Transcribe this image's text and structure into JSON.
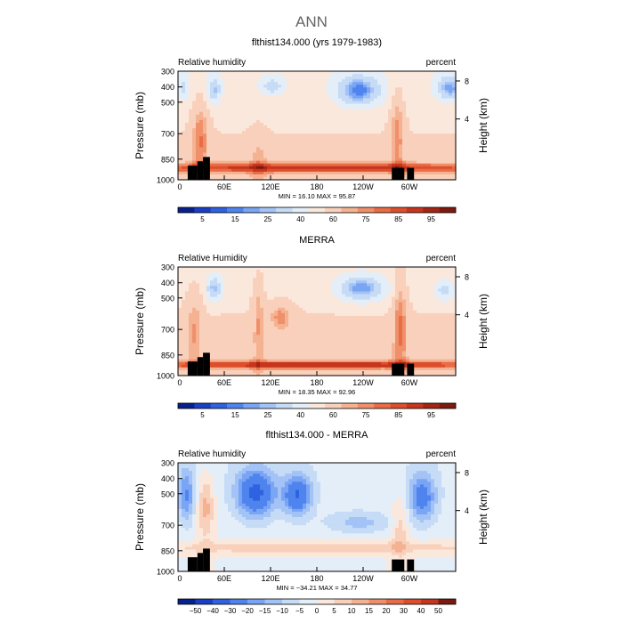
{
  "figure": {
    "title": "ANN"
  },
  "chart_data": [
    {
      "type": "heatmap",
      "title": "flthist134.000 (yrs 1979-1983)",
      "left_label": "Relative humidity",
      "right_label": "percent",
      "ylabel": "Pressure (mb)",
      "ylabel_right": "Height (km)",
      "x_ticks": [
        "0",
        "60E",
        "120E",
        "180",
        "120W",
        "60W"
      ],
      "y_ticks": [
        "300",
        "400",
        "500",
        "700",
        "850",
        "1000"
      ],
      "y_ticks_right": [
        "8",
        "4"
      ],
      "stats_text": "MIN =   16.10   MAX =   95.87",
      "min": 16.1,
      "max": 95.87,
      "colorbar_labels": [
        "5",
        "15",
        "25",
        "40",
        "60",
        "75",
        "85",
        "95"
      ],
      "colors": [
        "#08208c",
        "#1b3fc4",
        "#2f62e0",
        "#4f84ee",
        "#7aa4f4",
        "#a3c3f6",
        "#c6dbf5",
        "#e4eef8",
        "#fbe8dc",
        "#f9d0bb",
        "#f5b293",
        "#f0906a",
        "#e86c46",
        "#dc4f2c",
        "#c6361d",
        "#a22515",
        "#7d190f"
      ],
      "field": "rh"
    },
    {
      "type": "heatmap",
      "title": "MERRA",
      "left_label": "Relative Humidity",
      "right_label": "percent",
      "ylabel": "Pressure (mb)",
      "ylabel_right": "Height (km)",
      "x_ticks": [
        "0",
        "60E",
        "120E",
        "180",
        "120W",
        "60W"
      ],
      "y_ticks": [
        "300",
        "400",
        "500",
        "700",
        "850",
        "1000"
      ],
      "y_ticks_right": [
        "8",
        "4"
      ],
      "stats_text": "MIN =   18.35   MAX =   92.96",
      "min": 18.35,
      "max": 92.96,
      "colorbar_labels": [
        "5",
        "15",
        "25",
        "40",
        "60",
        "75",
        "85",
        "95"
      ],
      "colors": [
        "#08208c",
        "#1b3fc4",
        "#2f62e0",
        "#4f84ee",
        "#7aa4f4",
        "#a3c3f6",
        "#c6dbf5",
        "#e4eef8",
        "#fbe8dc",
        "#f9d0bb",
        "#f5b293",
        "#f0906a",
        "#e86c46",
        "#dc4f2c",
        "#c6361d",
        "#a22515",
        "#7d190f"
      ],
      "field": "rh2"
    },
    {
      "type": "heatmap",
      "title": "flthist134.000 - MERRA",
      "left_label": "Relative humidity",
      "right_label": "percent",
      "ylabel": "Pressure (mb)",
      "ylabel_right": "Height (km)",
      "x_ticks": [
        "0",
        "60E",
        "120E",
        "180",
        "120W",
        "60W"
      ],
      "y_ticks": [
        "300",
        "400",
        "500",
        "700",
        "850",
        "1000"
      ],
      "y_ticks_right": [
        "8",
        "4"
      ],
      "stats_text": "MIN =  −34.21   MAX =   34.77",
      "min": -34.21,
      "max": 34.77,
      "colorbar_labels": [
        "−50",
        "−40",
        "−30",
        "−20",
        "−15",
        "−10",
        "−5",
        "0",
        "5",
        "10",
        "15",
        "20",
        "30",
        "40",
        "50"
      ],
      "colors": [
        "#08208c",
        "#1b3fc4",
        "#2f62e0",
        "#4f84ee",
        "#7aa4f4",
        "#a3c3f6",
        "#c6dbf5",
        "#e4eef8",
        "#fbe8dc",
        "#f9d0bb",
        "#f5b293",
        "#f0906a",
        "#e86c46",
        "#dc4f2c",
        "#c6361d",
        "#7d190f"
      ],
      "field": "diff"
    }
  ]
}
